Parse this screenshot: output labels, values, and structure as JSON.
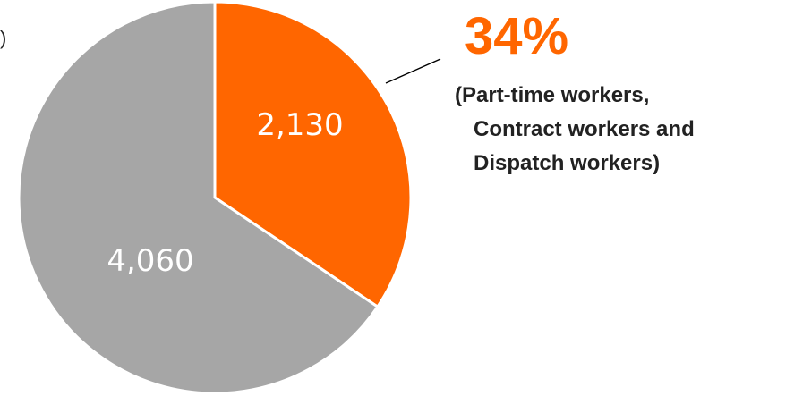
{
  "edge_text": ")",
  "chart_data": {
    "type": "pie",
    "title": "",
    "slices": [
      {
        "label": "2,130",
        "value": 2130,
        "color": "#ff6600"
      },
      {
        "label": "4,060",
        "value": 4060,
        "color": "#a6a6a6"
      }
    ],
    "start_angle": "12 o'clock",
    "direction": "clockwise",
    "border_color": "#ffffff",
    "slice_label_color": "#ffffff",
    "legend": "none",
    "callout": {
      "percent": "34%",
      "lines": [
        "(Part-time workers,",
        "Contract workers and",
        "Dispatch workers)"
      ],
      "percent_color": "#ff6600",
      "text_color": "#222222"
    }
  }
}
